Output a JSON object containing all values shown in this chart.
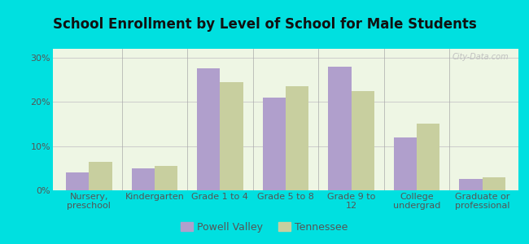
{
  "title": "School Enrollment by Level of School for Male Students",
  "categories": [
    "Nursery,\npreschool",
    "Kindergarten",
    "Grade 1 to 4",
    "Grade 5 to 8",
    "Grade 9 to\n12",
    "College\nundergrad",
    "Graduate or\nprofessional"
  ],
  "powell_valley": [
    4.0,
    5.0,
    27.5,
    21.0,
    28.0,
    12.0,
    2.5
  ],
  "tennessee": [
    6.5,
    5.5,
    24.5,
    23.5,
    22.5,
    15.0,
    3.0
  ],
  "powell_color": "#b09fcc",
  "tennessee_color": "#c8cf9f",
  "background_color": "#00e0e0",
  "ylim": [
    0,
    32
  ],
  "yticks": [
    0,
    10,
    20,
    30
  ],
  "ytick_labels": [
    "0%",
    "10%",
    "20%",
    "30%"
  ],
  "bar_width": 0.35,
  "legend_labels": [
    "Powell Valley",
    "Tennessee"
  ],
  "title_fontsize": 12,
  "axis_fontsize": 8,
  "legend_fontsize": 9,
  "grid_color": "#cccccc",
  "watermark": "City-Data.com"
}
